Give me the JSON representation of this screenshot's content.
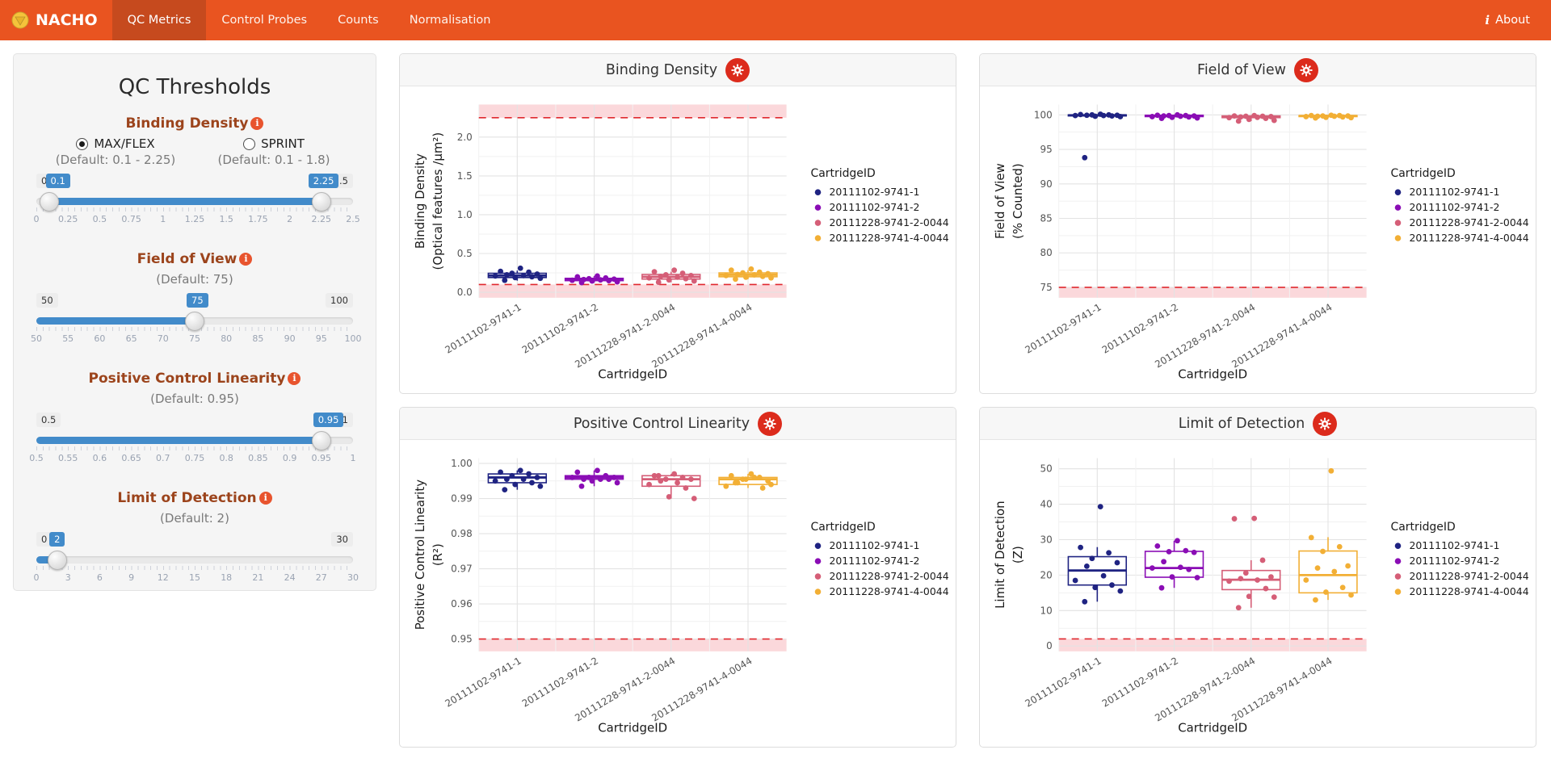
{
  "navbar": {
    "brand": "NACHO",
    "tabs": [
      {
        "label": "QC Metrics",
        "active": true
      },
      {
        "label": "Control Probes",
        "active": false
      },
      {
        "label": "Counts",
        "active": false
      },
      {
        "label": "Normalisation",
        "active": false
      }
    ],
    "about": "About"
  },
  "sidebar": {
    "title": "QC Thresholds",
    "sections": {
      "binding_density": {
        "label": "Binding Density",
        "options": [
          {
            "label": "MAX/FLEX",
            "selected": true,
            "note": "(Default: 0.1 - 2.25)"
          },
          {
            "label": "SPRINT",
            "selected": false,
            "note": "(Default: 0.1 - 1.8)"
          }
        ],
        "slider": {
          "min": 0,
          "max": 2.5,
          "from": 0.1,
          "to": 2.25,
          "min_label": "0",
          "max_label": "2.5",
          "from_label": "0.1",
          "to_label": "2.25",
          "ticks": [
            "0",
            "0.25",
            "0.5",
            "0.75",
            "1",
            "1.25",
            "1.5",
            "1.75",
            "2",
            "2.25",
            "2.5"
          ]
        }
      },
      "field_of_view": {
        "label": "Field of View",
        "note": "(Default: 75)",
        "slider": {
          "min": 50,
          "max": 100,
          "value": 75,
          "min_label": "50",
          "max_label": "100",
          "value_label": "75",
          "ticks": [
            "50",
            "55",
            "60",
            "65",
            "70",
            "75",
            "80",
            "85",
            "90",
            "95",
            "100"
          ]
        }
      },
      "positive_control_linearity": {
        "label": "Positive Control Linearity",
        "note": "(Default: 0.95)",
        "slider": {
          "min": 0.5,
          "max": 1,
          "value": 0.95,
          "min_label": "0.5",
          "max_label": "1",
          "value_label": "0.95",
          "ticks": [
            "0.5",
            "0.55",
            "0.6",
            "0.65",
            "0.7",
            "0.75",
            "0.8",
            "0.85",
            "0.9",
            "0.95",
            "1"
          ]
        }
      },
      "limit_of_detection": {
        "label": "Limit of Detection",
        "note": "(Default: 2)",
        "slider": {
          "min": 0,
          "max": 30,
          "value": 2,
          "min_label": "0",
          "max_label": "30",
          "value_label": "2",
          "ticks": [
            "0",
            "3",
            "6",
            "9",
            "12",
            "15",
            "18",
            "21",
            "24",
            "27",
            "30"
          ]
        }
      }
    }
  },
  "colors": {
    "navbar": "#E95420",
    "navbar_active": "#C64A1E",
    "accent_blue": "#428bca",
    "threshold_red": "#E0282E",
    "band_pink": "#ED4C5C",
    "gear_red": "#DC2B1C",
    "series": [
      "#1F2382",
      "#8A0DB5",
      "#D55E77",
      "#F2AF35"
    ]
  },
  "chart_data": [
    {
      "type": "boxplot-jitter",
      "title": "Binding Density",
      "ylabel_line1": "Binding Density",
      "ylabel_line2": "(Optical features /µm²)",
      "xlabel": "CartridgeID",
      "legend_title": "CartridgeID",
      "ylim": [
        -0.07,
        2.42
      ],
      "yticks": [
        0.0,
        0.5,
        1.0,
        1.5,
        2.0
      ],
      "ytick_labels": [
        "0.0",
        "0.5",
        "1.0",
        "1.5",
        "2.0"
      ],
      "threshold_lines": [
        0.1,
        2.25
      ],
      "threshold_bands": [
        [
          null,
          0.1
        ],
        [
          2.25,
          null
        ]
      ],
      "categories": [
        "20111102-9741-1",
        "20111102-9741-2",
        "20111228-9741-2-0044",
        "20111228-9741-4-0044"
      ],
      "series": [
        {
          "name": "20111102-9741-1",
          "color": "#1F2382",
          "box": {
            "lo": 0.15,
            "q1": 0.19,
            "med": 0.215,
            "q3": 0.245,
            "hi": 0.28
          },
          "points": [
            0.31,
            0.27,
            0.26,
            0.245,
            0.235,
            0.225,
            0.215,
            0.21,
            0.2,
            0.19,
            0.18,
            0.155
          ]
        },
        {
          "name": "20111102-9741-2",
          "color": "#8A0DB5",
          "box": {
            "lo": 0.125,
            "q1": 0.15,
            "med": 0.165,
            "q3": 0.18,
            "hi": 0.21
          },
          "points": [
            0.21,
            0.2,
            0.185,
            0.175,
            0.17,
            0.165,
            0.16,
            0.155,
            0.15,
            0.145,
            0.135,
            0.125
          ]
        },
        {
          "name": "20111228-9741-2-0044",
          "color": "#D55E77",
          "box": {
            "lo": 0.13,
            "q1": 0.17,
            "med": 0.2,
            "q3": 0.23,
            "hi": 0.265
          },
          "points": [
            0.285,
            0.265,
            0.245,
            0.225,
            0.215,
            0.205,
            0.195,
            0.185,
            0.175,
            0.16,
            0.145,
            0.13
          ]
        },
        {
          "name": "20111228-9741-4-0044",
          "color": "#F2AF35",
          "box": {
            "lo": 0.17,
            "q1": 0.2,
            "med": 0.225,
            "q3": 0.25,
            "hi": 0.285
          },
          "points": [
            0.3,
            0.285,
            0.26,
            0.25,
            0.24,
            0.23,
            0.225,
            0.215,
            0.205,
            0.195,
            0.185,
            0.17
          ]
        }
      ]
    },
    {
      "type": "boxplot-jitter",
      "title": "Field of View",
      "ylabel_line1": "Field of View",
      "ylabel_line2": "(% Counted)",
      "xlabel": "CartridgeID",
      "legend_title": "CartridgeID",
      "ylim": [
        73.5,
        101.5
      ],
      "yticks": [
        75,
        80,
        85,
        90,
        95,
        100
      ],
      "ytick_labels": [
        "75",
        "80",
        "85",
        "90",
        "95",
        "100"
      ],
      "threshold_lines": [
        75
      ],
      "threshold_bands": [
        [
          null,
          75
        ]
      ],
      "categories": [
        "20111102-9741-1",
        "20111102-9741-2",
        "20111228-9741-2-0044",
        "20111228-9741-4-0044"
      ],
      "series": [
        {
          "name": "20111102-9741-1",
          "color": "#1F2382",
          "box": {
            "lo": 99.7,
            "q1": 99.85,
            "med": 99.95,
            "q3": 100.0,
            "hi": 100.1
          },
          "points": [
            100.1,
            100.05,
            100.0,
            100.0,
            99.95,
            99.95,
            99.9,
            99.9,
            99.85,
            99.8,
            99.75,
            93.8
          ]
        },
        {
          "name": "20111102-9741-2",
          "color": "#8A0DB5",
          "box": {
            "lo": 99.5,
            "q1": 99.75,
            "med": 99.85,
            "q3": 99.95,
            "hi": 100.05
          },
          "points": [
            100.0,
            99.95,
            99.9,
            99.9,
            99.85,
            99.85,
            99.8,
            99.75,
            99.7,
            99.65,
            99.55,
            99.5
          ]
        },
        {
          "name": "20111228-9741-2-0044",
          "color": "#D55E77",
          "box": {
            "lo": 99.1,
            "q1": 99.6,
            "med": 99.75,
            "q3": 99.85,
            "hi": 99.95
          },
          "points": [
            99.9,
            99.85,
            99.8,
            99.8,
            99.75,
            99.7,
            99.65,
            99.6,
            99.5,
            99.35,
            99.2,
            99.1
          ]
        },
        {
          "name": "20111228-9741-4-0044",
          "color": "#F2AF35",
          "box": {
            "lo": 99.55,
            "q1": 99.75,
            "med": 99.85,
            "q3": 99.9,
            "hi": 100.0
          },
          "points": [
            99.95,
            99.9,
            99.9,
            99.85,
            99.85,
            99.8,
            99.8,
            99.75,
            99.7,
            99.65,
            99.6,
            99.55
          ]
        }
      ]
    },
    {
      "type": "boxplot-jitter",
      "title": "Positive Control Linearity",
      "ylabel_line1": "Positive Control Linearity",
      "ylabel_line2": "(R²)",
      "xlabel": "CartridgeID",
      "legend_title": "CartridgeID",
      "ylim": [
        0.9465,
        1.0015
      ],
      "yticks": [
        0.95,
        0.96,
        0.97,
        0.98,
        0.99,
        1.0
      ],
      "ytick_labels": [
        "0.95",
        "0.96",
        "0.97",
        "0.98",
        "0.99",
        "1.00"
      ],
      "threshold_lines": [
        0.95
      ],
      "threshold_bands": [
        [
          null,
          0.95
        ]
      ],
      "categories": [
        "20111102-9741-1",
        "20111102-9741-2",
        "20111228-9741-2-0044",
        "20111228-9741-4-0044"
      ],
      "series": [
        {
          "name": "20111102-9741-1",
          "color": "#1F2382",
          "box": {
            "lo": 0.9925,
            "q1": 0.9945,
            "med": 0.996,
            "q3": 0.997,
            "hi": 0.998
          },
          "points": [
            0.998,
            0.9975,
            0.997,
            0.9965,
            0.996,
            0.9955,
            0.9955,
            0.995,
            0.9945,
            0.994,
            0.9935,
            0.9925
          ]
        },
        {
          "name": "20111102-9741-2",
          "color": "#8A0DB5",
          "box": {
            "lo": 0.9935,
            "q1": 0.9955,
            "med": 0.996,
            "q3": 0.9965,
            "hi": 0.998
          },
          "points": [
            0.998,
            0.9975,
            0.9965,
            0.996,
            0.996,
            0.9955,
            0.9955,
            0.996,
            0.9955,
            0.995,
            0.9945,
            0.9935
          ]
        },
        {
          "name": "20111228-9741-2-0044",
          "color": "#D55E77",
          "box": {
            "lo": 0.99,
            "q1": 0.9935,
            "med": 0.9955,
            "q3": 0.9965,
            "hi": 0.997
          },
          "points": [
            0.997,
            0.9965,
            0.996,
            0.9955,
            0.9955,
            0.995,
            0.9945,
            0.994,
            0.993,
            0.9905,
            0.99,
            0.9965
          ]
        },
        {
          "name": "20111228-9741-4-0044",
          "color": "#F2AF35",
          "box": {
            "lo": 0.993,
            "q1": 0.994,
            "med": 0.9955,
            "q3": 0.996,
            "hi": 0.997
          },
          "points": [
            0.997,
            0.9965,
            0.996,
            0.9955,
            0.995,
            0.9945,
            0.996,
            0.9935,
            0.993,
            0.9955,
            0.994,
            0.9945
          ]
        }
      ]
    },
    {
      "type": "boxplot-jitter",
      "title": "Limit of Detection",
      "ylabel_line1": "Limit of Detection",
      "ylabel_line2": "(Z)",
      "xlabel": "CartridgeID",
      "legend_title": "CartridgeID",
      "ylim": [
        -1.5,
        53
      ],
      "yticks": [
        0,
        10,
        20,
        30,
        40,
        50
      ],
      "ytick_labels": [
        "0",
        "10",
        "20",
        "30",
        "40",
        "50"
      ],
      "threshold_lines": [
        2
      ],
      "threshold_bands": [
        [
          null,
          2
        ]
      ],
      "categories": [
        "20111102-9741-1",
        "20111102-9741-2",
        "20111228-9741-2-0044",
        "20111228-9741-4-0044"
      ],
      "series": [
        {
          "name": "20111102-9741-1",
          "color": "#1F2382",
          "box": {
            "lo": 12.5,
            "q1": 17.2,
            "med": 21.3,
            "q3": 25.2,
            "hi": 27.9
          },
          "points": [
            39.3,
            27.8,
            26.3,
            24.7,
            23.5,
            22.5,
            19.8,
            18.5,
            17.2,
            16.5,
            15.5,
            12.5
          ]
        },
        {
          "name": "20111102-9741-2",
          "color": "#8A0DB5",
          "box": {
            "lo": 16.4,
            "q1": 19.4,
            "med": 22.0,
            "q3": 26.7,
            "hi": 29.7
          },
          "points": [
            29.7,
            28.2,
            26.9,
            26.6,
            26.4,
            23.8,
            22.2,
            22.0,
            21.6,
            19.5,
            19.3,
            16.4
          ]
        },
        {
          "name": "20111228-9741-2-0044",
          "color": "#D55E77",
          "box": {
            "lo": 10.8,
            "q1": 15.9,
            "med": 18.7,
            "q3": 21.3,
            "hi": 24.2
          },
          "points": [
            36.0,
            35.9,
            24.2,
            20.6,
            19.5,
            19.0,
            18.6,
            18.3,
            16.2,
            14.0,
            13.8,
            10.8
          ]
        },
        {
          "name": "20111228-9741-4-0044",
          "color": "#F2AF35",
          "box": {
            "lo": 13.0,
            "q1": 15.0,
            "med": 20.0,
            "q3": 26.8,
            "hi": 30.7
          },
          "points": [
            49.4,
            30.6,
            28.0,
            26.7,
            22.6,
            22.0,
            21.0,
            18.6,
            16.5,
            15.2,
            14.4,
            13.0
          ]
        }
      ]
    }
  ]
}
